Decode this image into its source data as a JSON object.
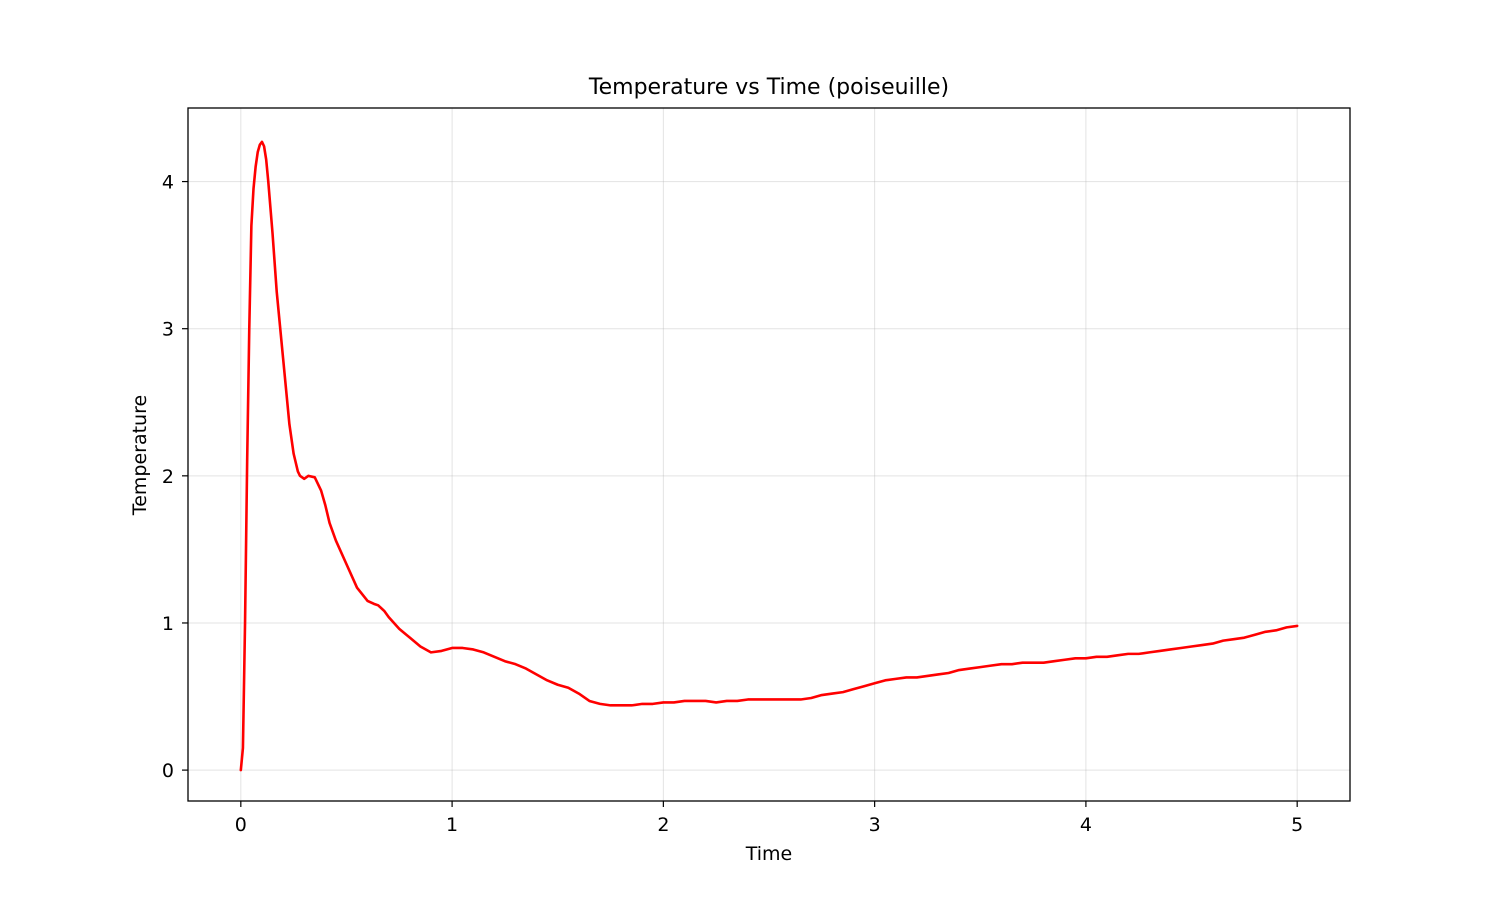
{
  "chart_data": {
    "type": "line",
    "title": "Temperature vs Time (poiseuille)",
    "xlabel": "Time",
    "ylabel": "Temperature",
    "xlim": [
      -0.25,
      5.25
    ],
    "ylim": [
      -0.21,
      4.5
    ],
    "xticks": [
      0,
      1,
      2,
      3,
      4,
      5
    ],
    "yticks": [
      0,
      1,
      2,
      3,
      4
    ],
    "grid": true,
    "line_color": "#ff0000",
    "series": [
      {
        "x": [
          0,
          0.01,
          0.02,
          0.03,
          0.04,
          0.05,
          0.06,
          0.07,
          0.08,
          0.09,
          0.1,
          0.11,
          0.12,
          0.13,
          0.15,
          0.17,
          0.2,
          0.23,
          0.25,
          0.27,
          0.28,
          0.3,
          0.32,
          0.35,
          0.38,
          0.4,
          0.42,
          0.45,
          0.5,
          0.55,
          0.6,
          0.63,
          0.65,
          0.68,
          0.7,
          0.75,
          0.8,
          0.85,
          0.9,
          0.95,
          1.0,
          1.05,
          1.1,
          1.15,
          1.2,
          1.25,
          1.3,
          1.35,
          1.4,
          1.45,
          1.5,
          1.55,
          1.6,
          1.65,
          1.7,
          1.75,
          1.8,
          1.85,
          1.9,
          1.95,
          2.0,
          2.05,
          2.1,
          2.15,
          2.2,
          2.25,
          2.3,
          2.35,
          2.4,
          2.45,
          2.5,
          2.55,
          2.6,
          2.65,
          2.7,
          2.75,
          2.8,
          2.85,
          2.9,
          2.95,
          3.0,
          3.05,
          3.1,
          3.15,
          3.2,
          3.25,
          3.3,
          3.35,
          3.4,
          3.45,
          3.5,
          3.55,
          3.6,
          3.65,
          3.7,
          3.75,
          3.8,
          3.85,
          3.9,
          3.95,
          4.0,
          4.05,
          4.1,
          4.15,
          4.2,
          4.25,
          4.3,
          4.35,
          4.4,
          4.45,
          4.5,
          4.55,
          4.6,
          4.65,
          4.7,
          4.75,
          4.8,
          4.85,
          4.9,
          4.95,
          5.0
        ],
        "y": [
          0,
          0.15,
          1.0,
          2.1,
          3.0,
          3.7,
          3.95,
          4.1,
          4.2,
          4.25,
          4.27,
          4.24,
          4.15,
          4.0,
          3.65,
          3.25,
          2.8,
          2.35,
          2.15,
          2.03,
          2.0,
          1.98,
          2.0,
          1.99,
          1.9,
          1.8,
          1.68,
          1.56,
          1.4,
          1.24,
          1.15,
          1.13,
          1.12,
          1.08,
          1.04,
          0.96,
          0.9,
          0.84,
          0.8,
          0.81,
          0.83,
          0.83,
          0.82,
          0.8,
          0.77,
          0.74,
          0.72,
          0.69,
          0.65,
          0.61,
          0.58,
          0.56,
          0.52,
          0.47,
          0.45,
          0.44,
          0.44,
          0.44,
          0.45,
          0.45,
          0.46,
          0.46,
          0.47,
          0.47,
          0.47,
          0.46,
          0.47,
          0.47,
          0.48,
          0.48,
          0.48,
          0.48,
          0.48,
          0.48,
          0.49,
          0.51,
          0.52,
          0.53,
          0.55,
          0.57,
          0.59,
          0.61,
          0.62,
          0.63,
          0.63,
          0.64,
          0.65,
          0.66,
          0.68,
          0.69,
          0.7,
          0.71,
          0.72,
          0.72,
          0.73,
          0.73,
          0.73,
          0.74,
          0.75,
          0.76,
          0.76,
          0.77,
          0.77,
          0.78,
          0.79,
          0.79,
          0.8,
          0.81,
          0.82,
          0.83,
          0.84,
          0.85,
          0.86,
          0.88,
          0.89,
          0.9,
          0.92,
          0.94,
          0.95,
          0.97,
          0.98
        ]
      }
    ]
  }
}
